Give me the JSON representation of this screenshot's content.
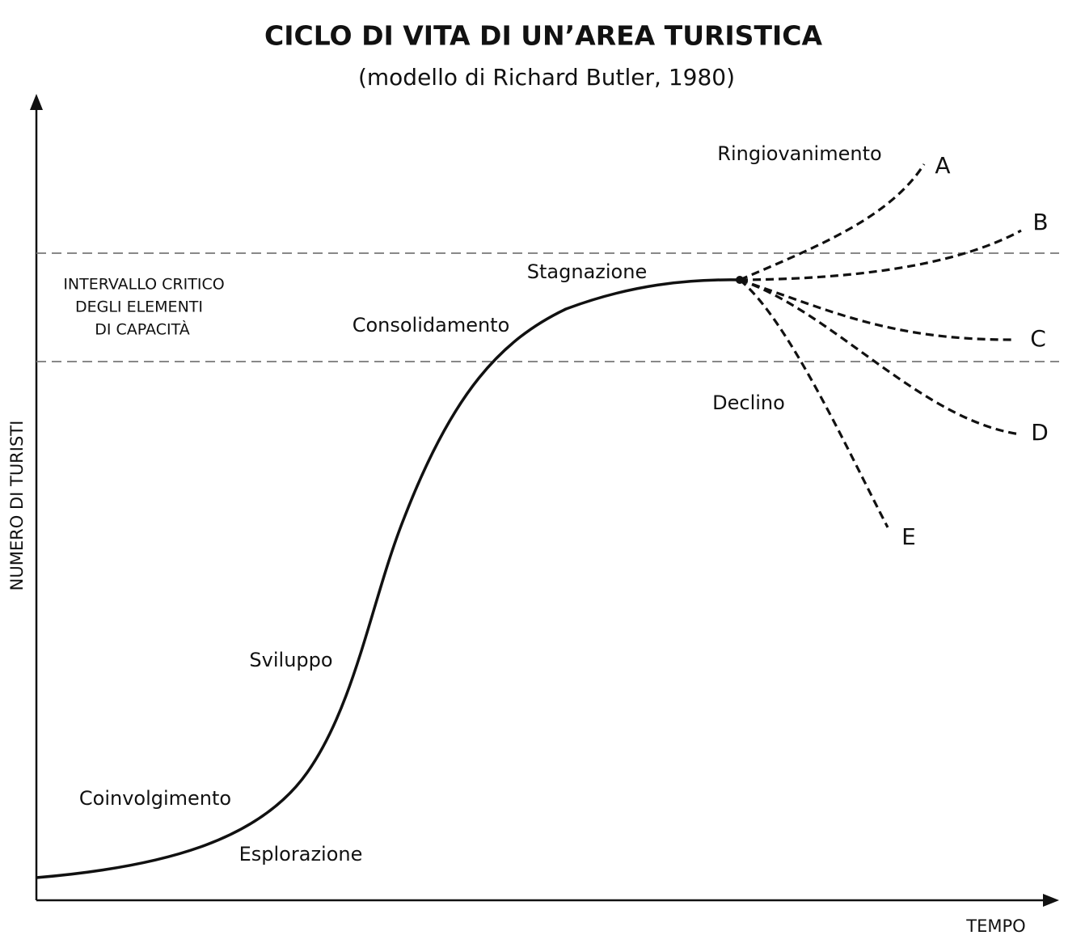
{
  "title": "CICLO DI VITA DI UN’AREA TURISTICA",
  "subtitle": "(modello di Richard Butler, 1980)",
  "y_axis_label": "NUMERO DI TURISTI",
  "x_axis_label": "TEMPO",
  "critical_range_label": [
    "INTERVALLO CRITICO",
    "DEGLI ELEMENTI",
    "DI CAPACITÀ"
  ],
  "stages": [
    "Esplorazione",
    "Coinvolgimento",
    "Sviluppo",
    "Consolidamento",
    "Stagnazione",
    "Ringiovanimento",
    "Declino"
  ],
  "branches": [
    "A",
    "B",
    "C",
    "D",
    "E"
  ]
}
